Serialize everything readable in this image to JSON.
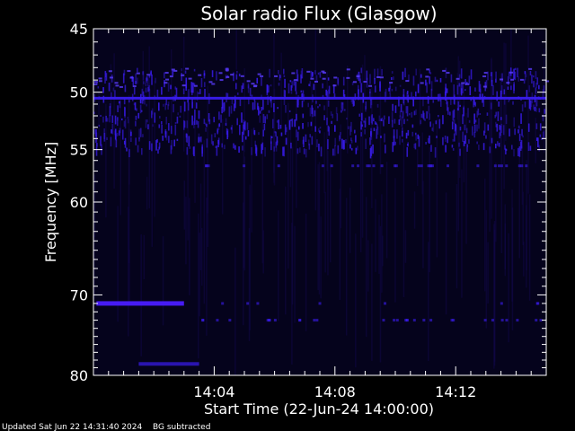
{
  "chart_data": {
    "type": "heatmap",
    "title": "Solar radio Flux (Glasgow)",
    "xlabel": "Start Time (22-Jun-24 14:00:00)",
    "ylabel": "Frequency [MHz]",
    "x_unit": "minutes after 14:00:00",
    "xlim": [
      0,
      15
    ],
    "x_ticks": [
      {
        "value": 4,
        "label": "14:04"
      },
      {
        "value": 8,
        "label": "14:08"
      },
      {
        "value": 12,
        "label": "14:12"
      }
    ],
    "y_scale": "log",
    "ylim": [
      45,
      80
    ],
    "y_ticks": [
      {
        "value": 45,
        "label": "45"
      },
      {
        "value": 50,
        "label": "50"
      },
      {
        "value": 55,
        "label": "55"
      },
      {
        "value": 60,
        "label": "60"
      },
      {
        "value": 70,
        "label": "70"
      },
      {
        "value": 80,
        "label": "80"
      }
    ],
    "background_color": "#05031c",
    "emission_color": "#3a1cf0",
    "features": [
      {
        "band": "strong interference",
        "freq_range_mhz": [
          48,
          55
        ],
        "time_range_min": [
          0,
          15
        ],
        "intensity": "high"
      },
      {
        "band": "continuous line",
        "freq_mhz": 50.5,
        "time_range_min": [
          0,
          15
        ],
        "intensity": "high"
      },
      {
        "band": "burst",
        "freq_mhz": 71,
        "time_range_min": [
          0.1,
          3
        ],
        "intensity": "very high"
      },
      {
        "band": "burst",
        "freq_mhz": 78.5,
        "time_range_min": [
          1.5,
          3.5
        ],
        "intensity": "medium"
      }
    ]
  },
  "footer": {
    "updated": "Updated Sat Jun 22 14:31:40 2024",
    "note": "BG subtracted"
  }
}
